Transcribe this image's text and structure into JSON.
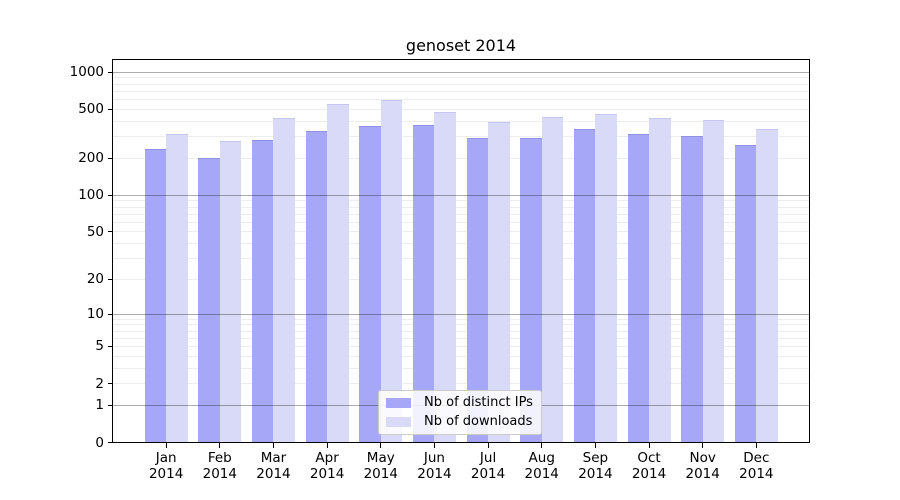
{
  "chart_data": {
    "type": "bar",
    "title": "genoset 2014",
    "categories": [
      "Jan 2014",
      "Feb 2014",
      "Mar 2014",
      "Apr 2014",
      "May 2014",
      "Jun 2014",
      "Jul 2014",
      "Aug 2014",
      "Sep 2014",
      "Oct 2014",
      "Nov 2014",
      "Dec 2014"
    ],
    "months": [
      "Jan",
      "Feb",
      "Mar",
      "Apr",
      "May",
      "Jun",
      "Jul",
      "Aug",
      "Sep",
      "Oct",
      "Nov",
      "Dec"
    ],
    "year_label": "2014",
    "series": [
      {
        "name": "Nb of distinct IPs",
        "color": "#a7a7f8",
        "edge_color": "#9191e6",
        "values": [
          240,
          200,
          280,
          335,
          365,
          370,
          295,
          295,
          345,
          315,
          305,
          255
        ]
      },
      {
        "name": "Nb of downloads",
        "color": "#d9d9f8",
        "edge_color": "#c6c6ef",
        "values": [
          315,
          275,
          425,
          550,
          600,
          480,
          395,
          435,
          455,
          425,
          410,
          345
        ]
      }
    ],
    "y_axis": {
      "scale": "log10(1+x)",
      "tick_values": [
        0,
        1,
        2,
        5,
        10,
        20,
        50,
        100,
        200,
        500,
        1000
      ],
      "tick_labels": [
        "0",
        "1",
        "2",
        "5",
        "10",
        "20",
        "50",
        "100",
        "200",
        "500",
        "1000"
      ],
      "major_grid_values": [
        1,
        10,
        100,
        1000
      ],
      "minor_grid_values": [
        2,
        3,
        4,
        5,
        6,
        7,
        8,
        9,
        20,
        30,
        40,
        50,
        60,
        70,
        80,
        90,
        200,
        300,
        400,
        500,
        600,
        700,
        800,
        900
      ],
      "range": [
        0,
        1290
      ]
    },
    "legend": {
      "position": "lower center",
      "entries": [
        "Nb of distinct IPs",
        "Nb of downloads"
      ]
    },
    "grid": true,
    "colors": {
      "background": "#ffffff",
      "axis": "#000000",
      "major_grid": "#b0b0b0",
      "minor_grid": "#e8e8e8",
      "legend_border": "#cccccc"
    }
  }
}
